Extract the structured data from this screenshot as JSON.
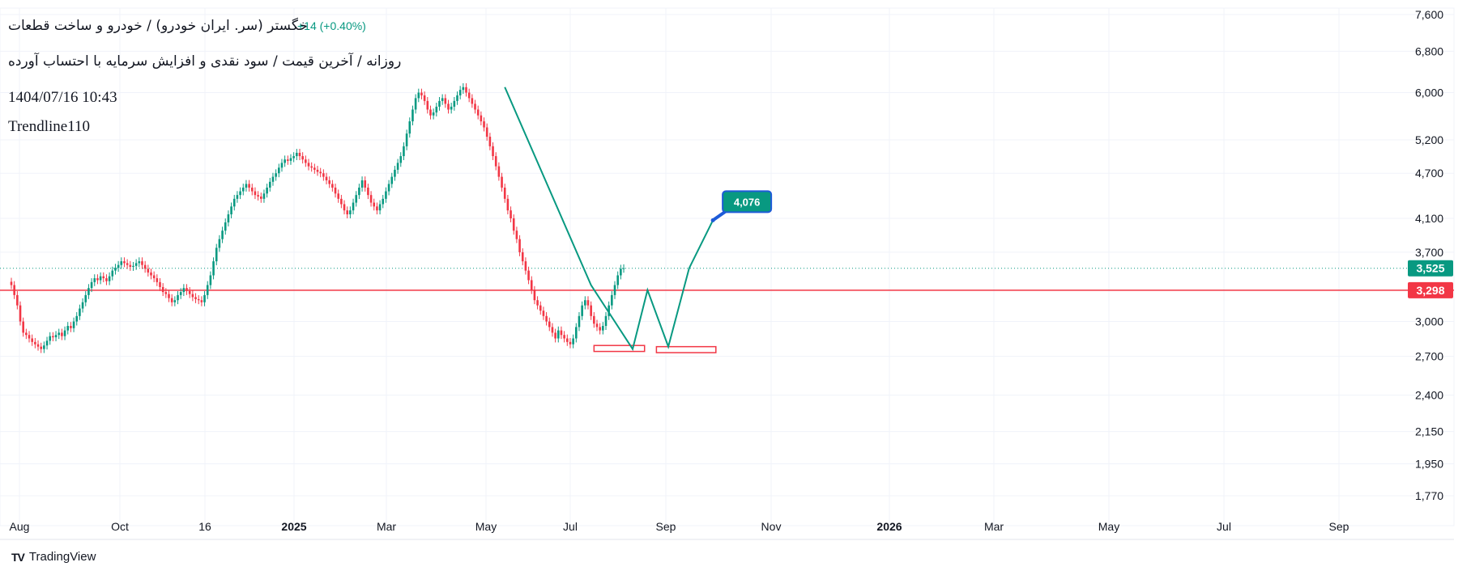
{
  "header": {
    "symbol_line": "خگستر (سر. ایران خودرو) / خودرو و ساخت قطعات",
    "change": "+14 (+0.40%)",
    "subtitle_line": "روزانه / آخرین قیمت / سود نقدی و افزایش سرمایه با احتساب آورده",
    "datetime": "1404/07/16 10:43",
    "author": "Trendline110"
  },
  "branding": {
    "name": "TradingView",
    "logo": "TV"
  },
  "colors": {
    "up": "#089981",
    "down": "#f23645",
    "trendline": "#089981",
    "projection": "#1e5bd8",
    "support": "#f23645",
    "grid": "#f0f3fa",
    "axis_text": "#131722"
  },
  "chart_data": {
    "type": "candlestick",
    "price_scale": "log",
    "y_ticks": [
      7600,
      6800,
      6000,
      5200,
      4700,
      4100,
      3700,
      3000,
      2700,
      2400,
      2150,
      1950,
      1770
    ],
    "x_ticks": [
      "Aug",
      "Oct",
      "16",
      "2025",
      "Mar",
      "May",
      "Jul",
      "Sep",
      "Nov",
      "2026",
      "Mar",
      "May",
      "Jul",
      "Sep"
    ],
    "x_ticks_bold": [
      "2025",
      "2026"
    ],
    "ohlc_from_close": [
      3350,
      3250,
      3150,
      3000,
      2900,
      2880,
      2850,
      2820,
      2800,
      2780,
      2760,
      2790,
      2830,
      2870,
      2860,
      2880,
      2900,
      2870,
      2920,
      2960,
      2940,
      3000,
      3050,
      3120,
      3180,
      3250,
      3320,
      3380,
      3420,
      3400,
      3440,
      3420,
      3390,
      3440,
      3500,
      3530,
      3560,
      3600,
      3580,
      3560,
      3540,
      3550,
      3580,
      3600,
      3560,
      3520,
      3480,
      3450,
      3420,
      3380,
      3330,
      3280,
      3260,
      3220,
      3180,
      3200,
      3250,
      3280,
      3320,
      3290,
      3260,
      3230,
      3210,
      3200,
      3180,
      3250,
      3350,
      3450,
      3600,
      3750,
      3850,
      3950,
      4050,
      4150,
      4250,
      4350,
      4400,
      4450,
      4500,
      4550,
      4500,
      4450,
      4400,
      4380,
      4350,
      4420,
      4500,
      4580,
      4650,
      4700,
      4780,
      4850,
      4900,
      4880,
      4920,
      4950,
      5000,
      4950,
      4900,
      4850,
      4800,
      4780,
      4750,
      4720,
      4700,
      4650,
      4600,
      4550,
      4500,
      4420,
      4350,
      4280,
      4200,
      4150,
      4200,
      4300,
      4400,
      4500,
      4600,
      4500,
      4400,
      4300,
      4250,
      4200,
      4280,
      4350,
      4450,
      4550,
      4650,
      4750,
      4850,
      4950,
      5100,
      5300,
      5500,
      5700,
      5900,
      6000,
      5950,
      5850,
      5700,
      5600,
      5650,
      5750,
      5850,
      5900,
      5800,
      5700,
      5750,
      5850,
      5950,
      6050,
      6100,
      6000,
      5900,
      5800,
      5700,
      5600,
      5500,
      5400,
      5250,
      5100,
      4950,
      4800,
      4650,
      4500,
      4350,
      4200,
      4100,
      3950,
      3850,
      3700,
      3600,
      3500,
      3400,
      3300,
      3200,
      3150,
      3100,
      3050,
      3000,
      2950,
      2900,
      2850,
      2920,
      2880,
      2850,
      2820,
      2800,
      2850,
      2950,
      3050,
      3150,
      3200,
      3150,
      3050,
      2980,
      2950,
      2920,
      2960,
      3050,
      3150,
      3250,
      3350,
      3450,
      3520,
      3525
    ],
    "last_price": 3525,
    "support_level": 3298,
    "projection_label": "4,076",
    "projection_value": 4076,
    "zigzag": [
      {
        "bar": 166,
        "price": 6100
      },
      {
        "bar": 195,
        "price": 3350
      },
      {
        "bar": 209,
        "price": 2760
      },
      {
        "bar": 214,
        "price": 3300
      },
      {
        "bar": 221,
        "price": 2780
      },
      {
        "bar": 228,
        "price": 3525
      },
      {
        "bar": 236,
        "price": 4076
      }
    ],
    "bottom_boxes": [
      {
        "bar_from": 196,
        "bar_to": 213,
        "price_top": 2790,
        "price_bottom": 2740
      },
      {
        "bar_from": 217,
        "bar_to": 237,
        "price_top": 2780,
        "price_bottom": 2730
      }
    ]
  }
}
